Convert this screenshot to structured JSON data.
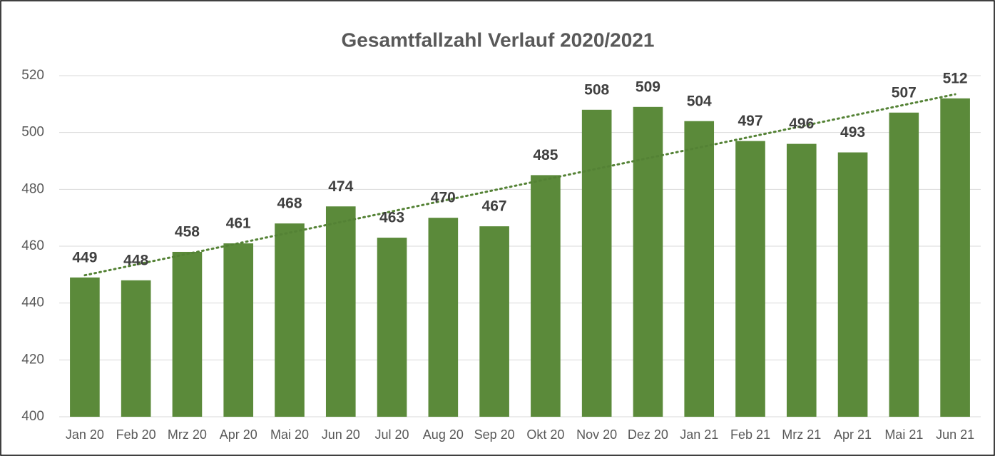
{
  "chart_data": {
    "type": "bar",
    "title": "Gesamtfallzahl Verlauf 2020/2021",
    "categories": [
      "Jan 20",
      "Feb 20",
      "Mrz 20",
      "Apr 20",
      "Mai 20",
      "Jun 20",
      "Jul 20",
      "Aug 20",
      "Sep 20",
      "Okt 20",
      "Nov 20",
      "Dez 20",
      "Jan 21",
      "Feb 21",
      "Mrz 21",
      "Apr 21",
      "Mai 21",
      "Jun 21"
    ],
    "values": [
      449,
      448,
      458,
      461,
      468,
      474,
      463,
      470,
      467,
      485,
      508,
      509,
      504,
      497,
      496,
      493,
      507,
      512
    ],
    "color": "#5b8a3a",
    "ylim": [
      400,
      520
    ],
    "yticks": [
      400,
      420,
      440,
      460,
      480,
      500,
      520
    ],
    "grid": true,
    "trendline": "linear",
    "trendline_color": "#548235"
  }
}
